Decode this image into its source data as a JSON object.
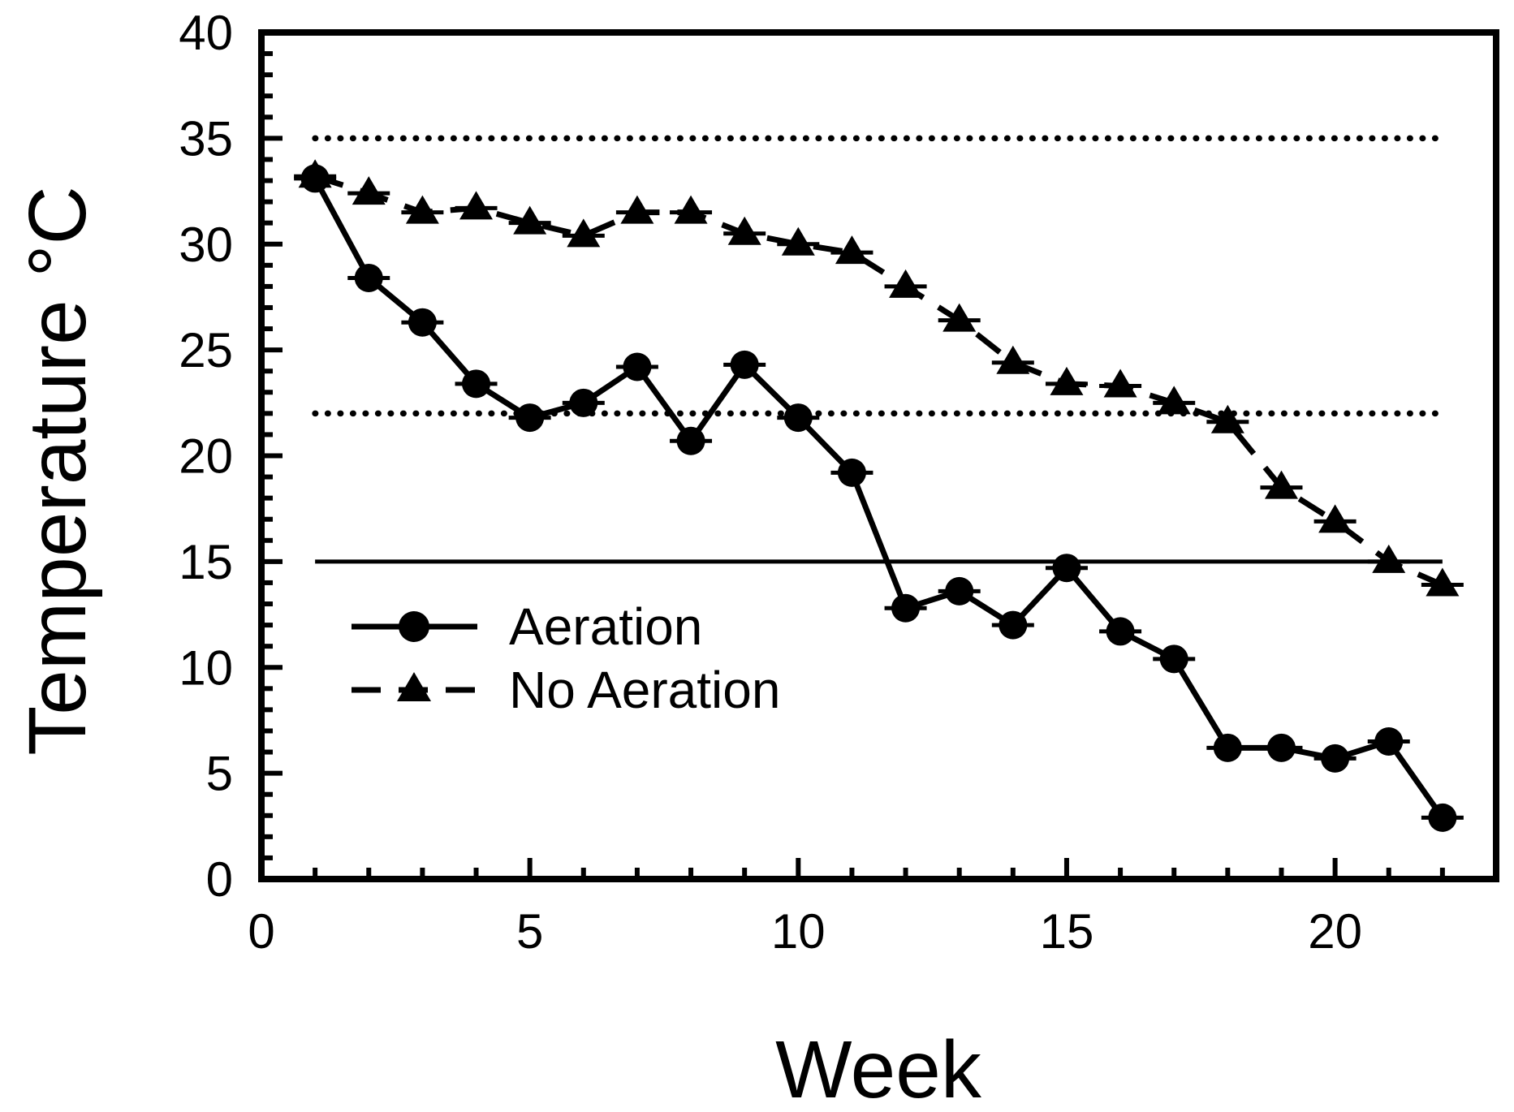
{
  "figure": {
    "background_color": "#ffffff",
    "ink_color": "#000000"
  },
  "axes": {
    "x": {
      "label": "Week",
      "min": 0,
      "max": 23,
      "major_ticks": [
        0,
        5,
        10,
        15,
        20
      ],
      "major_tick_labels": [
        "0",
        "5",
        "10",
        "15",
        "20"
      ],
      "minor_tick_step": 1
    },
    "y": {
      "label": "Temperature °C",
      "min": 0,
      "max": 40,
      "major_ticks": [
        0,
        5,
        10,
        15,
        20,
        25,
        30,
        35,
        40
      ],
      "major_tick_labels": [
        "0",
        "5",
        "10",
        "15",
        "20",
        "25",
        "30",
        "35",
        "40"
      ],
      "minor_tick_step": 1
    }
  },
  "reference_lines": [
    {
      "name": "upper-setpoint",
      "y": 35,
      "style": "dotted",
      "x_start": 1,
      "x_end": 22
    },
    {
      "name": "lower-setpoint",
      "y": 22,
      "style": "dotted",
      "x_start": 1,
      "x_end": 22
    },
    {
      "name": "threshold-15",
      "y": 15,
      "style": "solid",
      "x_start": 1,
      "x_end": 22
    }
  ],
  "legend": {
    "position": "inside-left-middle",
    "items": [
      {
        "label": "Aeration",
        "marker": "circle",
        "line": "solid"
      },
      {
        "label": "No Aeration",
        "marker": "triangle",
        "line": "dashed"
      }
    ]
  },
  "chart_data": {
    "type": "line",
    "title": "",
    "xlabel": "Week",
    "ylabel": "Temperature °C",
    "xlim": [
      0,
      23
    ],
    "ylim": [
      0,
      40
    ],
    "grid": false,
    "x": [
      1,
      2,
      3,
      4,
      5,
      6,
      7,
      8,
      9,
      10,
      11,
      12,
      13,
      14,
      15,
      16,
      17,
      18,
      19,
      20,
      21,
      22
    ],
    "series": [
      {
        "name": "Aeration",
        "marker": "circle",
        "line_style": "solid",
        "values": [
          33.1,
          28.4,
          26.3,
          23.4,
          21.8,
          22.5,
          24.2,
          20.7,
          24.3,
          21.8,
          19.2,
          12.8,
          13.6,
          12.0,
          14.7,
          11.7,
          10.4,
          6.2,
          6.2,
          5.7,
          6.5,
          2.9
        ]
      },
      {
        "name": "No Aeration",
        "marker": "triangle",
        "line_style": "dashed",
        "values": [
          33.2,
          32.4,
          31.5,
          31.7,
          31.0,
          30.4,
          31.5,
          31.5,
          30.5,
          30.0,
          29.6,
          28.0,
          26.4,
          24.4,
          23.4,
          23.3,
          22.5,
          21.6,
          18.5,
          16.9,
          15.0,
          13.9
        ]
      }
    ]
  }
}
